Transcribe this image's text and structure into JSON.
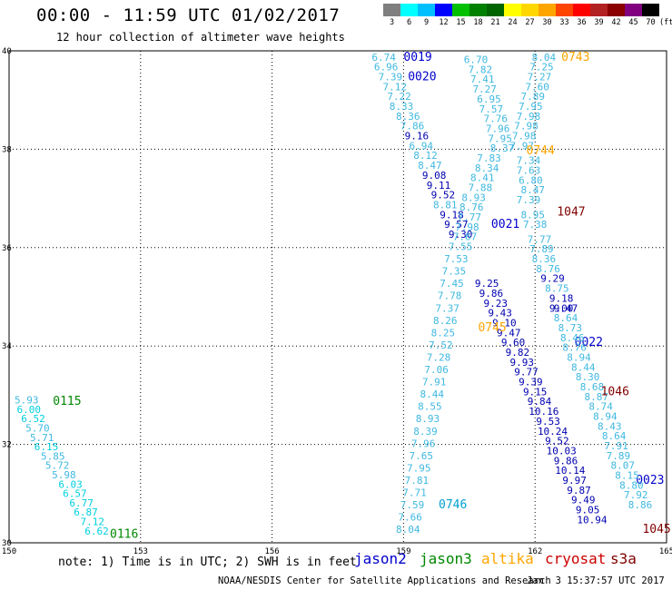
{
  "title": "00:00 - 11:59 UTC 01/02/2017",
  "subtitle": "12 hour collection of altimeter wave heights",
  "colorbar": {
    "labels": [
      "3",
      "6",
      "9",
      "12",
      "15",
      "18",
      "21",
      "24",
      "27",
      "30",
      "33",
      "36",
      "39",
      "42",
      "45",
      "70",
      "(ft)"
    ],
    "colors": [
      "#7f7f7f",
      "#00ffff",
      "#00bfff",
      "#0000ff",
      "#00c000",
      "#008000",
      "#006400",
      "#ffff00",
      "#ffd700",
      "#ffa500",
      "#ff4500",
      "#ff0000",
      "#b22222",
      "#8b0000",
      "#800080",
      "#000000"
    ]
  },
  "note": "note: 1) Time is in UTC; 2) SWH is in feet",
  "satellites": [
    {
      "name": "jason2",
      "color": "#0000cc"
    },
    {
      "name": "jason3",
      "color": "#008800"
    },
    {
      "name": "altika",
      "color": "#ffa500"
    },
    {
      "name": "cryosat",
      "color": "#cc0000"
    },
    {
      "name": "s3a",
      "color": "#800000"
    }
  ],
  "footer_left": "NOAA/NESDIS Center for Satellite Applications and Research",
  "footer_right": "Jan  3 15:37:57 UTC 2017",
  "chart_data": {
    "type": "scatter",
    "xlim": [
      150,
      165
    ],
    "ylim": [
      30,
      40
    ],
    "xticks": [
      "150",
      "153",
      "156",
      "159",
      "162",
      "165"
    ],
    "yticks": [
      "30",
      "32",
      "34",
      "36",
      "38",
      "40"
    ],
    "grid": true,
    "tracks": [
      {
        "satellite": "jason3",
        "time": "0115",
        "labelColor": "#008800",
        "labelPos": [
          151.0,
          32.8
        ],
        "points": [
          [
            150.4,
            32.83,
            "5.93"
          ],
          [
            150.45,
            32.64,
            "6.00"
          ],
          [
            150.55,
            32.45,
            "6.52"
          ],
          [
            150.65,
            32.26,
            "5.70"
          ],
          [
            150.75,
            32.07,
            "5.71"
          ],
          [
            150.85,
            31.88,
            "6.15"
          ],
          [
            151.0,
            31.69,
            "5.85"
          ],
          [
            151.1,
            31.5,
            "5.72"
          ],
          [
            151.25,
            31.31,
            "5.98"
          ],
          [
            151.4,
            31.12,
            "6.03"
          ],
          [
            151.5,
            30.93,
            "6.57"
          ],
          [
            151.65,
            30.74,
            "6.77"
          ],
          [
            151.75,
            30.55,
            "6.87"
          ],
          [
            151.9,
            30.36,
            "7.12"
          ],
          [
            152.0,
            30.17,
            "6.62"
          ]
        ],
        "endLabel": "0116",
        "endPos": [
          152.3,
          30.1
        ]
      },
      {
        "satellite": "jason2",
        "time": "0019",
        "labelColor": "#0000cc",
        "labelPos": [
          159.0,
          39.8
        ],
        "points": [
          [
            158.55,
            39.8,
            "6.74"
          ],
          [
            158.6,
            39.6,
            "6.96"
          ],
          [
            158.7,
            39.4,
            "7.39"
          ],
          [
            158.8,
            39.2,
            "7.12"
          ],
          [
            158.9,
            39.0,
            "7.22"
          ],
          [
            158.95,
            38.8,
            "8.33"
          ],
          [
            159.1,
            38.6,
            "8.36"
          ],
          [
            159.2,
            38.4,
            "7.86"
          ],
          [
            159.3,
            38.2,
            "9.16"
          ],
          [
            159.4,
            38.0,
            "6.94"
          ],
          [
            159.5,
            37.8,
            "8.12"
          ],
          [
            159.6,
            37.6,
            "8.47"
          ],
          [
            159.7,
            37.4,
            "9.08"
          ],
          [
            159.8,
            37.2,
            "9.11"
          ],
          [
            159.9,
            37.0,
            "9.52"
          ],
          [
            159.95,
            36.8,
            "8.81"
          ],
          [
            160.1,
            36.6,
            "9.18"
          ],
          [
            160.2,
            36.4,
            "9.57"
          ],
          [
            160.3,
            36.2,
            "9.30"
          ]
        ],
        "endLabel": "0020",
        "endPos": [
          159.1,
          39.4
        ]
      },
      {
        "satellite": "jason2",
        "time": "0021",
        "labelColor": "#0000cc",
        "labelPos": [
          161.0,
          36.4
        ],
        "points": [
          [
            160.9,
            35.2,
            "9.25"
          ],
          [
            161.0,
            35.0,
            "9.86"
          ],
          [
            161.1,
            34.8,
            "9.23"
          ],
          [
            161.2,
            34.6,
            "9.43"
          ],
          [
            161.3,
            34.4,
            "9.10"
          ],
          [
            161.4,
            34.2,
            "9.47"
          ],
          [
            161.5,
            34.0,
            "9.60"
          ],
          [
            161.6,
            33.8,
            "9.82"
          ],
          [
            161.7,
            33.6,
            "9.93"
          ],
          [
            161.8,
            33.4,
            "9.77"
          ],
          [
            161.9,
            33.2,
            "9.39"
          ],
          [
            162.0,
            33.0,
            "9.15"
          ],
          [
            162.1,
            32.8,
            "9.84"
          ],
          [
            162.2,
            32.6,
            "10.16"
          ],
          [
            162.3,
            32.4,
            "9.53"
          ],
          [
            162.4,
            32.2,
            "10.24"
          ],
          [
            162.5,
            32.0,
            "9.52"
          ],
          [
            162.6,
            31.8,
            "10.03"
          ],
          [
            162.7,
            31.6,
            "9.86"
          ],
          [
            162.8,
            31.4,
            "10.14"
          ],
          [
            162.9,
            31.2,
            "9.97"
          ],
          [
            163.0,
            31.0,
            "9.87"
          ],
          [
            163.1,
            30.8,
            "9.49"
          ],
          [
            163.2,
            30.6,
            "9.05"
          ],
          [
            163.3,
            30.4,
            "10.94"
          ]
        ],
        "endLabel": "0022",
        "endPos": [
          162.9,
          34.0
        ]
      },
      {
        "satellite": "jason2",
        "time": "0023",
        "labelColor": "#0000cc",
        "labelPos": [
          164.3,
          31.2
        ],
        "points": [],
        "endLabel": "",
        "endPos": [
          0,
          0
        ]
      },
      {
        "satellite": "altika",
        "time": "0743",
        "labelColor": "#ffa500",
        "labelPos": [
          162.6,
          39.8
        ],
        "points": [
          [
            162.2,
            39.8,
            "8.04"
          ],
          [
            162.15,
            39.6,
            "7.25"
          ],
          [
            162.1,
            39.4,
            "7.27"
          ],
          [
            162.05,
            39.2,
            "7.60"
          ],
          [
            161.95,
            39.0,
            "7.89"
          ],
          [
            161.9,
            38.8,
            "7.95"
          ],
          [
            161.85,
            38.6,
            "7.98"
          ],
          [
            161.8,
            38.4,
            "7.98"
          ],
          [
            161.75,
            38.2,
            "7.98"
          ],
          [
            161.7,
            38.0,
            "7.97"
          ]
        ],
        "endLabel": "0744",
        "endPos": [
          161.8,
          37.9
        ]
      },
      {
        "satellite": "jason2",
        "time": "0019b",
        "labelColor": "#00a0d0",
        "labelPos": [
          0,
          0
        ],
        "points": [
          [
            160.65,
            39.75,
            "6.70"
          ],
          [
            160.75,
            39.55,
            "7.82"
          ],
          [
            160.8,
            39.35,
            "7.41"
          ],
          [
            160.85,
            39.15,
            "7.27"
          ],
          [
            160.95,
            38.95,
            "6.95"
          ],
          [
            161.0,
            38.75,
            "7.57"
          ],
          [
            161.1,
            38.55,
            "7.76"
          ],
          [
            161.15,
            38.35,
            "7.96"
          ],
          [
            161.2,
            38.15,
            "7.95"
          ],
          [
            161.25,
            37.95,
            "8.37"
          ]
        ],
        "endLabel": "",
        "endPos": [
          0,
          0
        ]
      },
      {
        "satellite": "altika",
        "time": "0745",
        "labelColor": "#ffa500",
        "labelPos": [
          160.7,
          34.3
        ],
        "points": [
          [
            161.85,
            37.7,
            "7.34"
          ],
          [
            161.85,
            37.5,
            "7.63"
          ],
          [
            161.9,
            37.3,
            "6.80"
          ],
          [
            161.95,
            37.1,
            "8.47"
          ],
          [
            161.85,
            36.9,
            "7.39"
          ],
          [
            161.95,
            36.6,
            "8.95"
          ],
          [
            162.0,
            36.4,
            "7.38"
          ],
          [
            162.1,
            36.1,
            "7.77"
          ],
          [
            162.15,
            35.9,
            "7.89"
          ],
          [
            162.2,
            35.7,
            "8.36"
          ],
          [
            162.3,
            35.5,
            "8.76"
          ],
          [
            162.4,
            35.3,
            "9.29"
          ],
          [
            162.5,
            35.1,
            "8.75"
          ],
          [
            162.6,
            34.9,
            "9.18"
          ],
          [
            162.7,
            34.7,
            "9.47"
          ]
        ],
        "endLabel": "",
        "endPos": [
          0,
          0
        ]
      },
      {
        "satellite": "jason3",
        "time": "0745b",
        "labelColor": "#00a0d0",
        "labelPos": [
          0,
          0
        ],
        "points": [
          [
            160.95,
            37.75,
            "7.83"
          ],
          [
            160.9,
            37.55,
            "8.34"
          ],
          [
            160.8,
            37.35,
            "8.41"
          ],
          [
            160.75,
            37.15,
            "7.88"
          ],
          [
            160.6,
            36.95,
            "8.93"
          ],
          [
            160.55,
            36.75,
            "8.76"
          ],
          [
            160.5,
            36.55,
            "7.77"
          ],
          [
            160.45,
            36.35,
            "7.98"
          ],
          [
            160.4,
            36.15,
            "7.67"
          ],
          [
            160.3,
            35.95,
            "7.55"
          ],
          [
            160.2,
            35.7,
            "7.53"
          ],
          [
            160.15,
            35.45,
            "7.35"
          ],
          [
            160.1,
            35.2,
            "7.45"
          ],
          [
            160.05,
            34.95,
            "7.78"
          ],
          [
            160.0,
            34.7,
            "7.37"
          ],
          [
            159.95,
            34.45,
            "8.26"
          ],
          [
            159.9,
            34.2,
            "8.25"
          ],
          [
            159.85,
            33.95,
            "7.52"
          ],
          [
            159.8,
            33.7,
            "7.28"
          ],
          [
            159.75,
            33.45,
            "7.06"
          ],
          [
            159.7,
            33.2,
            "7.91"
          ],
          [
            159.65,
            32.95,
            "8.44"
          ],
          [
            159.6,
            32.7,
            "8.55"
          ],
          [
            159.55,
            32.45,
            "8.93"
          ],
          [
            159.5,
            32.2,
            "8.39"
          ],
          [
            159.45,
            31.95,
            "7.96"
          ],
          [
            159.4,
            31.7,
            "7.65"
          ],
          [
            159.35,
            31.45,
            "7.95"
          ],
          [
            159.3,
            31.2,
            "7.81"
          ],
          [
            159.25,
            30.95,
            "7.71"
          ],
          [
            159.2,
            30.7,
            "7.59"
          ],
          [
            159.15,
            30.45,
            "7.66"
          ],
          [
            159.1,
            30.2,
            "8.04"
          ]
        ],
        "endLabel": "0746",
        "endPos": [
          159.8,
          30.7
        ]
      },
      {
        "satellite": "altika",
        "time": "0746b",
        "labelColor": "#00a0d0",
        "labelPos": [
          0,
          0
        ],
        "points": [
          [
            162.6,
            34.7,
            "9.00"
          ],
          [
            162.7,
            34.5,
            "8.64"
          ],
          [
            162.8,
            34.3,
            "8.73"
          ],
          [
            162.85,
            34.1,
            "8.46"
          ],
          [
            162.9,
            33.9,
            "8.76"
          ],
          [
            163.0,
            33.7,
            "8.94"
          ],
          [
            163.1,
            33.5,
            "8.44"
          ],
          [
            163.2,
            33.3,
            "8.30"
          ],
          [
            163.3,
            33.1,
            "8.68"
          ],
          [
            163.4,
            32.9,
            "8.87"
          ],
          [
            163.5,
            32.7,
            "8.74"
          ],
          [
            163.6,
            32.5,
            "8.94"
          ],
          [
            163.7,
            32.3,
            "8.43"
          ],
          [
            163.8,
            32.1,
            "8.64"
          ],
          [
            163.85,
            31.9,
            "7.91"
          ],
          [
            163.9,
            31.7,
            "7.89"
          ],
          [
            164.0,
            31.5,
            "8.07"
          ],
          [
            164.1,
            31.3,
            "8.15"
          ],
          [
            164.2,
            31.1,
            "8.80"
          ],
          [
            164.3,
            30.9,
            "7.92"
          ],
          [
            164.4,
            30.7,
            "8.86"
          ]
        ],
        "endLabel": "",
        "endPos": [
          0,
          0
        ]
      },
      {
        "satellite": "s3a",
        "time": "1047",
        "labelColor": "#800000",
        "labelPos": [
          162.5,
          36.65
        ],
        "points": [],
        "endLabel": "",
        "endPos": [
          0,
          0
        ]
      },
      {
        "satellite": "s3a",
        "time": "1046",
        "labelColor": "#800000",
        "labelPos": [
          163.5,
          33.0
        ],
        "points": [],
        "endLabel": "",
        "endPos": [
          0,
          0
        ]
      },
      {
        "satellite": "s3a",
        "time": "1045",
        "labelColor": "#800000",
        "labelPos": [
          164.45,
          30.2
        ],
        "points": [],
        "endLabel": "",
        "endPos": [
          0,
          0
        ]
      }
    ]
  }
}
